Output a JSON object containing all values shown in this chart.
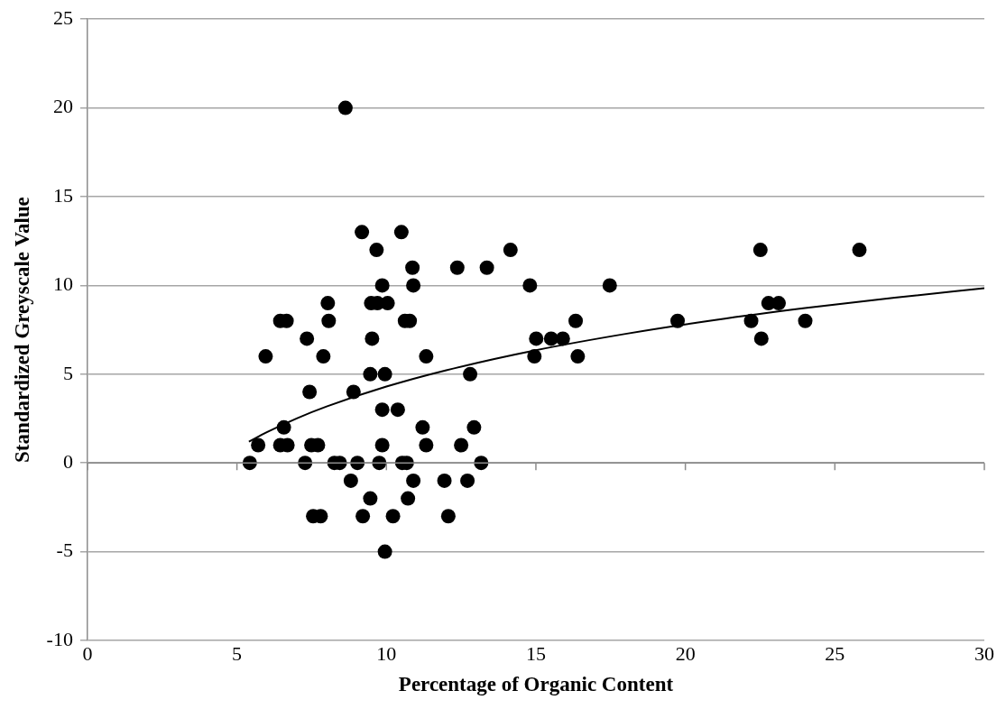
{
  "chart_data": {
    "type": "scatter",
    "xlabel": "Percentage of Organic Content",
    "ylabel": "Standardized Greyscale Value",
    "xlim": [
      0,
      30
    ],
    "xticks": [
      0,
      5,
      10,
      15,
      20,
      25,
      30
    ],
    "ylim": [
      -10,
      25
    ],
    "yticks": [
      -10,
      -5,
      0,
      5,
      10,
      15,
      20,
      25
    ],
    "grid": "y",
    "legend": false,
    "marker": "circle",
    "series": [
      {
        "color": "#000000",
        "x": [
          5.43,
          5.71,
          5.96,
          6.45,
          6.66,
          6.57,
          6.45,
          6.69,
          7.34,
          7.28,
          7.43,
          7.49,
          7.71,
          7.55,
          7.8,
          7.89,
          8.04,
          8.07,
          8.26,
          8.44,
          8.81,
          8.9,
          9.03,
          8.63,
          9.18,
          9.21,
          9.46,
          9.46,
          9.52,
          9.49,
          9.7,
          9.67,
          9.76,
          9.86,
          9.86,
          9.86,
          9.95,
          9.95,
          10.04,
          10.22,
          10.38,
          10.5,
          10.53,
          10.62,
          10.68,
          10.72,
          10.78,
          10.87,
          10.9,
          10.9,
          11.21,
          11.33,
          11.33,
          11.94,
          12.07,
          12.37,
          12.5,
          12.71,
          12.8,
          12.93,
          13.17,
          13.36,
          14.15,
          14.8,
          14.95,
          15.01,
          15.51,
          15.9,
          16.33,
          16.4,
          17.47,
          19.74,
          22.2,
          22.51,
          22.54,
          22.78,
          23.12,
          24.01,
          25.82
        ],
        "values": [
          0,
          1,
          6,
          8,
          8,
          2,
          1,
          1,
          7,
          0,
          4,
          1,
          1,
          -3,
          -3,
          6,
          9,
          8,
          0,
          0,
          -1,
          4,
          0,
          20,
          13,
          -3,
          -2,
          5,
          7,
          9,
          9,
          12,
          0,
          10,
          3,
          1,
          5,
          -5,
          9,
          -3,
          3,
          13,
          0,
          8,
          0,
          -2,
          8,
          11,
          10,
          -1,
          2,
          6,
          1,
          -1,
          -3,
          11,
          1,
          -1,
          5,
          2,
          0,
          11,
          12,
          10,
          6,
          7,
          7,
          7,
          8,
          6,
          10,
          8,
          8,
          12,
          7,
          9,
          9,
          8,
          12
        ]
      },
      {
        "type": "line",
        "color": "#000000",
        "marker": "none",
        "x": [
          5.4,
          6,
          7,
          8,
          10,
          12,
          15,
          18,
          21,
          24,
          27,
          30
        ],
        "values": [
          1.2,
          1.73,
          2.51,
          3.18,
          4.3,
          5.22,
          6.35,
          7.27,
          8.05,
          8.72,
          9.31,
          9.84
        ]
      }
    ]
  }
}
